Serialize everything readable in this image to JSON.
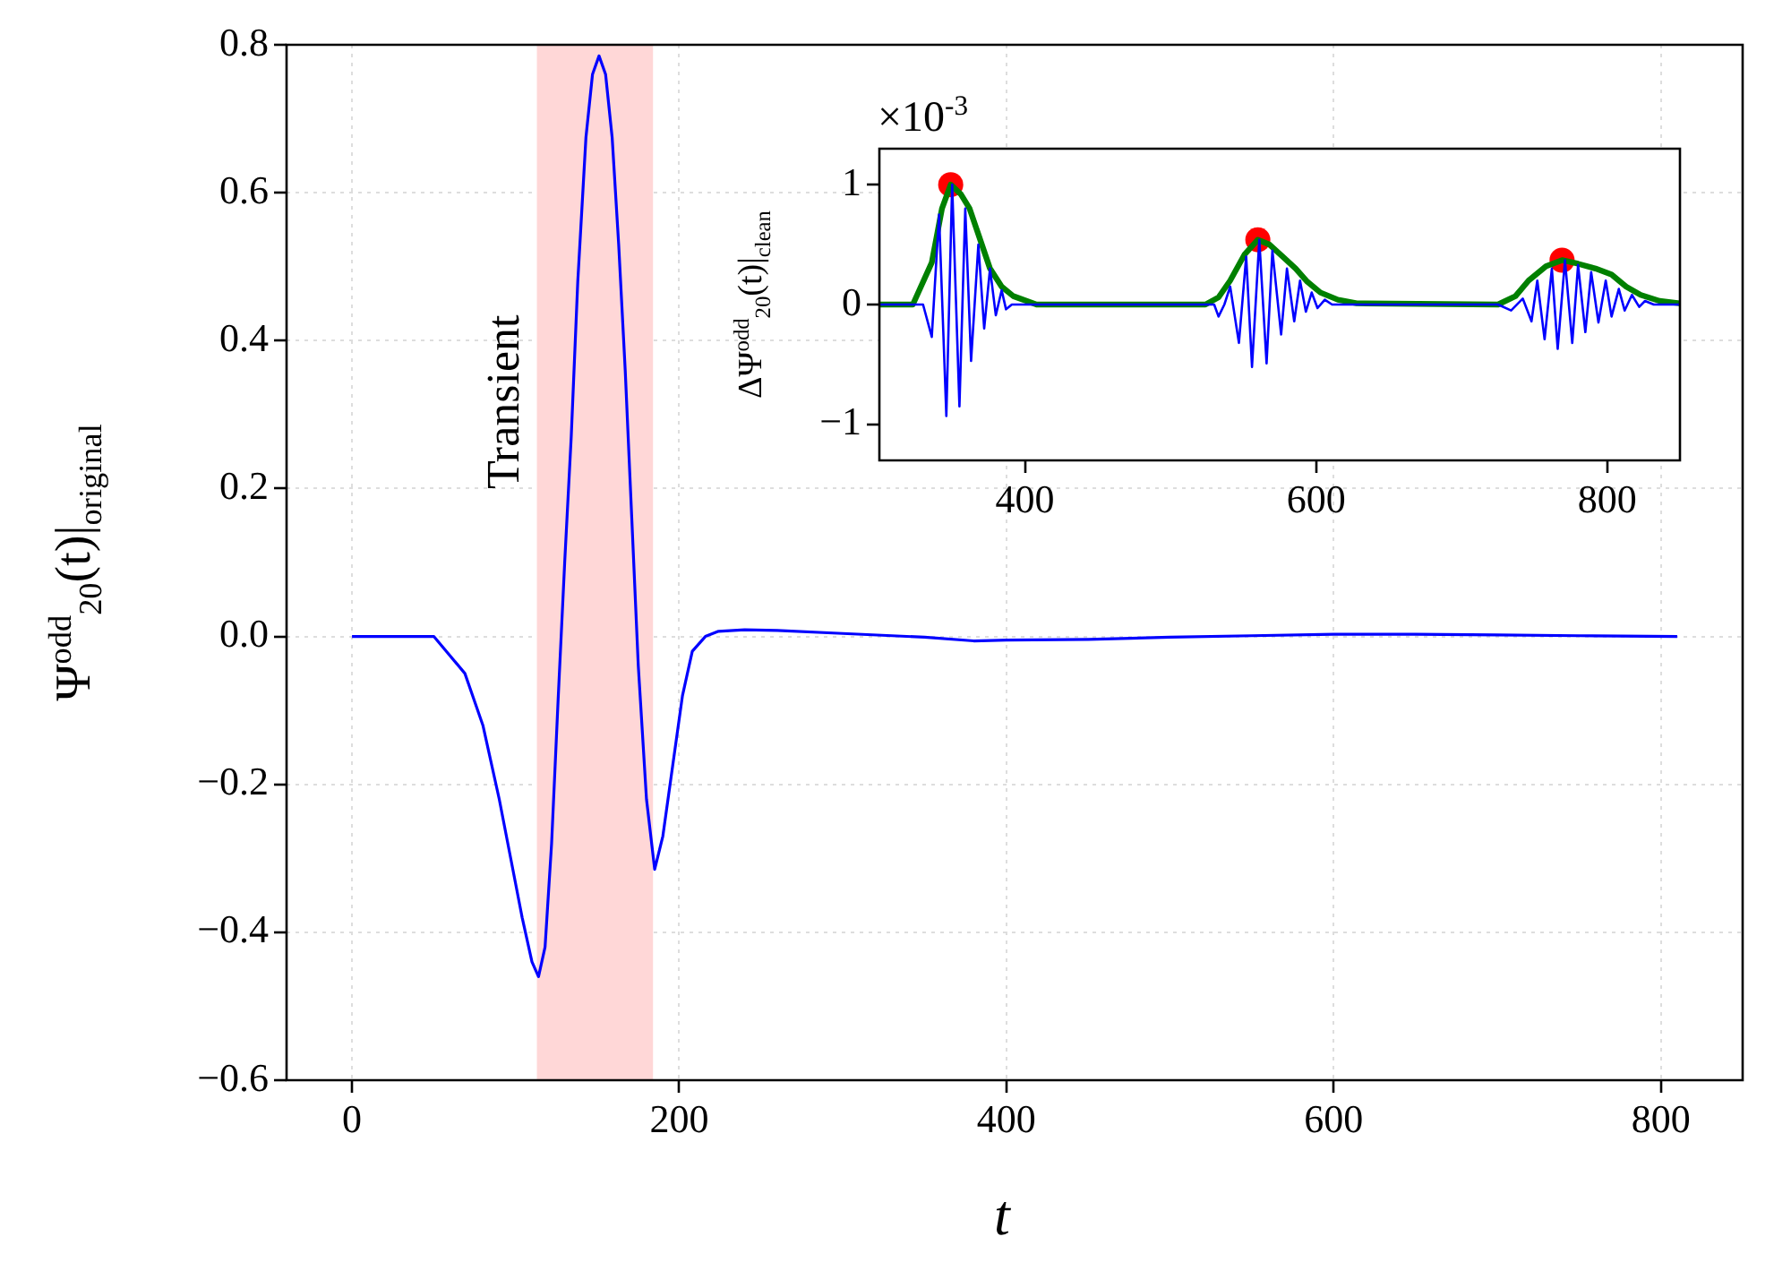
{
  "chart_data": [
    {
      "type": "line",
      "xlabel": "t",
      "ylabel": "Ψ$^{odd}$$_{20}$(t)|$_{original}$",
      "x": [
        0,
        50,
        69,
        80,
        90,
        97,
        104,
        110,
        114,
        118,
        122,
        126,
        130,
        134,
        138,
        143,
        147,
        151,
        155,
        159,
        163,
        167,
        171,
        175,
        180,
        185,
        190,
        196,
        202,
        208,
        216,
        224,
        240,
        260,
        300,
        350,
        380,
        400,
        450,
        500,
        550,
        600,
        650,
        700,
        750,
        810
      ],
      "series": [
        {
          "color": "#0000ff",
          "values": [
            0,
            0,
            -0.05,
            -0.12,
            -0.22,
            -0.3,
            -0.38,
            -0.44,
            -0.46,
            -0.42,
            -0.28,
            -0.085,
            0.1,
            0.27,
            0.48,
            0.675,
            0.76,
            0.785,
            0.76,
            0.675,
            0.53,
            0.36,
            0.16,
            -0.04,
            -0.22,
            -0.315,
            -0.27,
            -0.175,
            -0.08,
            -0.02,
            0.0,
            0.007,
            0.009,
            0.008,
            0.004,
            -0.001,
            -0.006,
            -0.005,
            -0.004,
            -0.001,
            0.001,
            0.003,
            0.003,
            0.002,
            0.001,
            0
          ]
        }
      ],
      "xlim": [
        -40,
        850
      ],
      "ylim": [
        -0.6,
        0.8
      ],
      "xticks": [
        0,
        200,
        400,
        600,
        800
      ],
      "yticks": [
        {
          "value": -0.6,
          "label": "−0.6"
        },
        {
          "value": -0.4,
          "label": "−0.4"
        },
        {
          "value": -0.2,
          "label": "−0.2"
        },
        {
          "value": 0,
          "label": "0.0"
        },
        0.2,
        0.4,
        0.6,
        0.8
      ],
      "grid": true,
      "bands": [
        {
          "axis": "x",
          "from": 113,
          "to": 184,
          "label": "Transient",
          "color": "#ffd7d7"
        }
      ]
    },
    {
      "type": "line",
      "ylabel": "ΔΨ$^{odd}$$_{20}$(t)|$_{clean}$",
      "annotations": [
        "×10$^{-3}$"
      ],
      "series": [
        {
          "type": "line",
          "color": "#0000ff",
          "x": [
            300,
            330,
            336,
            341,
            346,
            350,
            355,
            359,
            363,
            368,
            372,
            376,
            380,
            384,
            387,
            391,
            530,
            533,
            537,
            541,
            547,
            552,
            556,
            561,
            566,
            570,
            576,
            580,
            585,
            589,
            593,
            597,
            601,
            606,
            611,
            725,
            734,
            742,
            748,
            752,
            757,
            762,
            766,
            771,
            776,
            780,
            785,
            789,
            794,
            799,
            803,
            808,
            812,
            817,
            822,
            826,
            832,
            850
          ],
          "values": [
            0,
            0,
            -0.27,
            0.75,
            -0.93,
            1.0,
            -0.85,
            0.8,
            -0.47,
            0.5,
            -0.2,
            0.3,
            -0.09,
            0.12,
            -0.04,
            0,
            0,
            -0.1,
            0,
            0.15,
            -0.32,
            0.4,
            -0.52,
            0.54,
            -0.49,
            0.45,
            -0.25,
            0.3,
            -0.14,
            0.2,
            -0.06,
            0.1,
            -0.03,
            0.04,
            0,
            0,
            -0.05,
            0.05,
            -0.14,
            0.2,
            -0.29,
            0.3,
            -0.37,
            0.37,
            -0.32,
            0.33,
            -0.23,
            0.27,
            -0.15,
            0.2,
            -0.1,
            0.13,
            -0.05,
            0.08,
            -0.02,
            0.03,
            0,
            0
          ]
        },
        {
          "type": "line",
          "color": "#008000",
          "x": [
            300,
            323,
            336,
            343,
            349,
            356,
            362,
            369,
            376,
            384,
            392,
            408,
            524,
            533,
            541,
            551,
            560,
            568,
            577,
            586,
            594,
            603,
            615,
            628,
            725,
            737,
            746,
            758,
            769,
            780,
            792,
            803,
            813,
            823,
            836,
            850
          ],
          "values": [
            0,
            0,
            0.35,
            0.8,
            1.0,
            0.92,
            0.8,
            0.55,
            0.3,
            0.15,
            0.07,
            0,
            0,
            0.06,
            0.2,
            0.42,
            0.54,
            0.5,
            0.4,
            0.3,
            0.19,
            0.1,
            0.04,
            0.01,
            0,
            0.07,
            0.2,
            0.32,
            0.37,
            0.34,
            0.3,
            0.25,
            0.15,
            0.08,
            0.03,
            0.01
          ]
        },
        {
          "type": "scatter",
          "color": "#ff0000",
          "marker": "circle",
          "x": [
            349,
            560,
            769
          ],
          "values": [
            1.0,
            0.54,
            0.37
          ]
        }
      ],
      "xlim": [
        300,
        850
      ],
      "ylim": [
        -1.3,
        1.3
      ],
      "xticks": [
        400,
        600,
        800
      ],
      "yticks": [
        {
          "value": -1,
          "label": "−1"
        },
        0,
        1
      ]
    }
  ]
}
